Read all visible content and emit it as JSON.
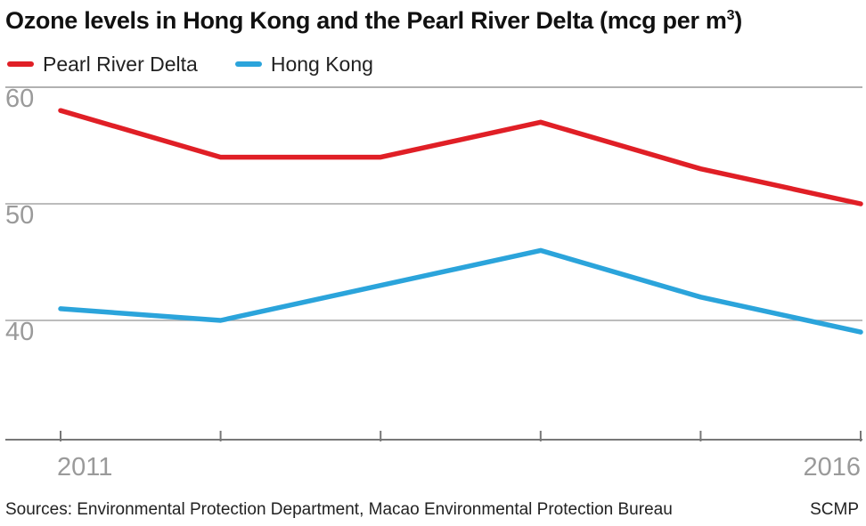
{
  "header": {
    "title": "Ozone levels in Hong Kong and the Pearl River Delta (mcg per m",
    "title_sup": "3",
    "title_close": ")"
  },
  "footer": {
    "source": "Sources: Environmental Protection Department, Macao Environmental Protection Bureau",
    "credit": "SCMP"
  },
  "chart_data": {
    "type": "line",
    "title": "Ozone levels in Hong Kong and the Pearl River Delta (mcg per m3)",
    "x": [
      2011,
      2012,
      2013,
      2014,
      2015,
      2016
    ],
    "x_tick_labels": [
      "2011",
      "",
      "",
      "",
      "",
      "2016"
    ],
    "y_ticks": [
      60,
      50,
      40
    ],
    "ylim": [
      30,
      62
    ],
    "grid": true,
    "legend_position": "top-left",
    "series": [
      {
        "name": "Pearl River Delta",
        "color": "#e01f26",
        "values": [
          58,
          54,
          54,
          57,
          53,
          50
        ]
      },
      {
        "name": "Hong Kong",
        "color": "#2ba4db",
        "values": [
          41,
          40,
          43,
          46,
          42,
          39
        ]
      }
    ],
    "colors": {
      "grid": "#a6a6a6",
      "axis": "#777777",
      "tick_label": "#9a9a9a"
    }
  }
}
